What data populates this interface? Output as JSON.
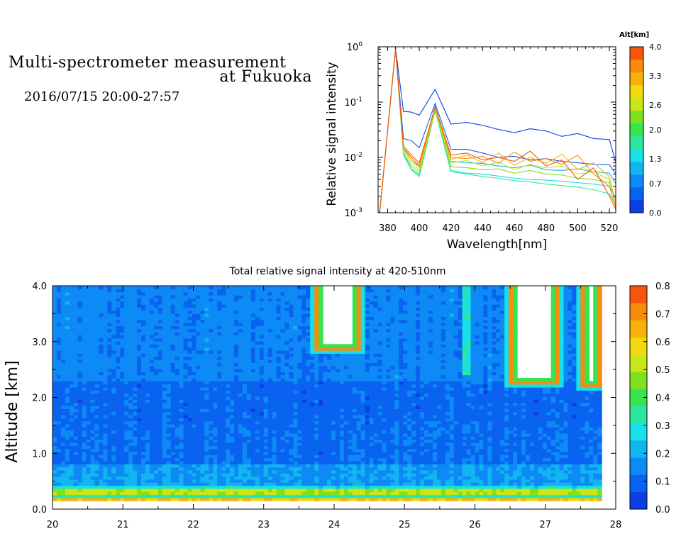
{
  "header": {
    "title_line1": "Multi-spectrometer measurement",
    "title_line2": "at Fukuoka",
    "datetime": "2016/07/15 20:00-27:57"
  },
  "colors": {
    "colorbar": [
      "#0a3ee6",
      "#0a62f0",
      "#0d8af5",
      "#12b4f2",
      "#17e0e6",
      "#2ee6a0",
      "#37e34f",
      "#7fe01e",
      "#c8e61a",
      "#f2d90d",
      "#f7b10d",
      "#f88a0d",
      "#f5560b"
    ]
  },
  "chart_data": [
    {
      "type": "line",
      "xlabel": "Wavelength[nm]",
      "ylabel": "Relative signal intensity",
      "xlim": [
        374,
        524
      ],
      "ylim": [
        0.001,
        1
      ],
      "yscale": "log",
      "x_ticks": [
        "380",
        "400",
        "420",
        "440",
        "460",
        "480",
        "500",
        "520"
      ],
      "y_ticks": [
        {
          "base": "10",
          "exp": "-3"
        },
        {
          "base": "10",
          "exp": "-2"
        },
        {
          "base": "10",
          "exp": "-1"
        },
        {
          "base": "10",
          "exp": "0"
        }
      ],
      "colorbar_label": "Alt[km]",
      "colorbar_ticks": [
        "0.0",
        "0.7",
        "1.3",
        "2.0",
        "2.6",
        "3.3",
        "4.0"
      ],
      "x": [
        375,
        385,
        390,
        395,
        400,
        410,
        420,
        430,
        440,
        450,
        460,
        470,
        480,
        490,
        500,
        510,
        520,
        525
      ],
      "series": [
        {
          "alt": 0.3,
          "values": [
            0.001,
            0.95,
            0.068,
            0.066,
            0.058,
            0.17,
            0.04,
            0.043,
            0.038,
            0.032,
            0.028,
            0.033,
            0.03,
            0.024,
            0.027,
            0.022,
            0.021,
            0.0065
          ]
        },
        {
          "alt": 0.6,
          "values": [
            0.001,
            0.92,
            0.022,
            0.02,
            0.015,
            0.095,
            0.014,
            0.014,
            0.012,
            0.01,
            0.0105,
            0.009,
            0.0095,
            0.0085,
            0.008,
            0.0075,
            0.0074,
            0.0045
          ]
        },
        {
          "alt": 1.0,
          "values": [
            0.001,
            0.9,
            0.015,
            0.009,
            0.007,
            0.085,
            0.0085,
            0.008,
            0.0078,
            0.007,
            0.0065,
            0.0072,
            0.006,
            0.0058,
            0.0062,
            0.0055,
            0.0052,
            0.003
          ]
        },
        {
          "alt": 1.4,
          "values": [
            0.001,
            0.9,
            0.012,
            0.0062,
            0.0048,
            0.078,
            0.0058,
            0.0052,
            0.005,
            0.0046,
            0.0042,
            0.004,
            0.0039,
            0.0037,
            0.0035,
            0.0033,
            0.003,
            0.0016
          ]
        },
        {
          "alt": 1.8,
          "values": [
            0.001,
            0.9,
            0.011,
            0.006,
            0.0045,
            0.07,
            0.0055,
            0.005,
            0.0045,
            0.0042,
            0.0038,
            0.0036,
            0.0033,
            0.0031,
            0.0029,
            0.0026,
            0.0022,
            0.0012
          ]
        },
        {
          "alt": 2.2,
          "values": [
            0.001,
            0.9,
            0.012,
            0.007,
            0.0052,
            0.072,
            0.0068,
            0.0065,
            0.006,
            0.0062,
            0.0052,
            0.0058,
            0.005,
            0.0048,
            0.0042,
            0.004,
            0.0035,
            0.0015
          ]
        },
        {
          "alt": 2.7,
          "values": [
            0.001,
            0.9,
            0.013,
            0.008,
            0.0058,
            0.075,
            0.008,
            0.0088,
            0.007,
            0.0082,
            0.006,
            0.0075,
            0.0065,
            0.007,
            0.005,
            0.0055,
            0.004,
            0.0012
          ]
        },
        {
          "alt": 3.2,
          "values": [
            0.001,
            0.9,
            0.014,
            0.009,
            0.0065,
            0.078,
            0.0092,
            0.011,
            0.008,
            0.012,
            0.0072,
            0.01,
            0.0078,
            0.0115,
            0.006,
            0.008,
            0.0045,
            0.0011
          ]
        },
        {
          "alt": 3.6,
          "values": [
            0.001,
            0.9,
            0.015,
            0.01,
            0.0072,
            0.08,
            0.01,
            0.0095,
            0.0105,
            0.0078,
            0.0125,
            0.0085,
            0.0095,
            0.0075,
            0.011,
            0.005,
            0.003,
            0.001
          ]
        },
        {
          "alt": 3.9,
          "values": [
            0.001,
            0.9,
            0.016,
            0.011,
            0.008,
            0.082,
            0.011,
            0.012,
            0.009,
            0.01,
            0.0085,
            0.013,
            0.007,
            0.009,
            0.004,
            0.0065,
            0.002,
            0.001
          ]
        }
      ]
    },
    {
      "type": "heatmap",
      "title": "Total relative signal intensity at 420-510nm",
      "xlabel": "",
      "ylabel": "Altitude [km]",
      "xlim": [
        20,
        28
      ],
      "ylim": [
        0,
        4
      ],
      "x_ticks": [
        "20",
        "21",
        "22",
        "23",
        "24",
        "25",
        "26",
        "27",
        "28"
      ],
      "y_ticks": [
        "0.0",
        "1.0",
        "2.0",
        "3.0",
        "4.0"
      ],
      "colorbar_ticks": [
        "0.0",
        "0.1",
        "0.2",
        "0.3",
        "0.4",
        "0.5",
        "0.6",
        "0.7",
        "0.8"
      ],
      "clim": [
        0,
        0.8
      ],
      "data_x_range": [
        20,
        27.8
      ],
      "data_y_range": [
        0.15,
        4.0
      ],
      "background_value": 0.1,
      "low_level_layers": [
        {
          "y": [
            0.15,
            0.22
          ],
          "value": 0.62
        },
        {
          "y": [
            0.22,
            0.27
          ],
          "value": 0.32
        },
        {
          "y": [
            0.27,
            0.35
          ],
          "value": 0.5
        },
        {
          "y": [
            0.35,
            0.45
          ],
          "value": 0.28
        },
        {
          "y": [
            0.45,
            0.8
          ],
          "value": 0.18
        }
      ],
      "upper_layer": {
        "y": [
          2.3,
          4.0
        ],
        "value": 0.14
      },
      "clouds": [
        {
          "x": [
            23.75,
            24.35
          ],
          "y": [
            2.85,
            4.0
          ],
          "edge": [
            0.3,
            0.7
          ]
        },
        {
          "x": [
            26.5,
            27.2
          ],
          "y": [
            2.25,
            4.0
          ],
          "edge": [
            0.3,
            0.7
          ]
        },
        {
          "x": [
            27.5,
            27.8
          ],
          "y": [
            2.2,
            4.0
          ],
          "edge": [
            0.3,
            0.7
          ]
        }
      ],
      "green_patches": [
        {
          "x": [
            25.8,
            25.95
          ],
          "y": [
            2.4,
            4.0
          ],
          "value": 0.3
        }
      ]
    }
  ]
}
